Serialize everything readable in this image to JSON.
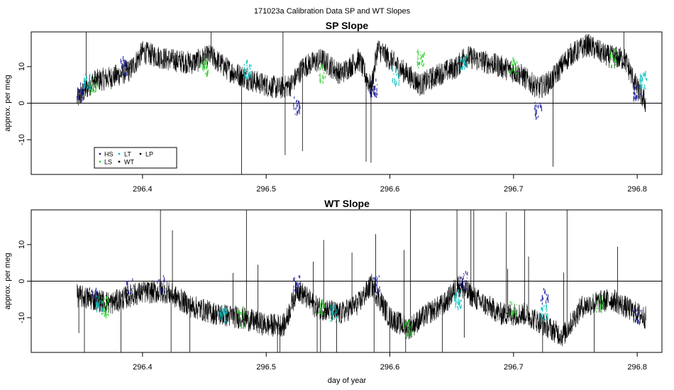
{
  "figure": {
    "suptitle": "171023a   Calibration Data SP and WT Slopes",
    "xlabel": "day of year"
  },
  "legend": {
    "entries": [
      {
        "label": "HS",
        "color": "#1a1a9c"
      },
      {
        "label": "LT",
        "color": "#00c0c0"
      },
      {
        "label": "LP",
        "color": "#000000"
      },
      {
        "label": "LS",
        "color": "#22cc22"
      },
      {
        "label": "WT",
        "color": "#000000"
      }
    ]
  },
  "chart_data": [
    {
      "type": "line",
      "title": "SP Slope",
      "xlabel": "",
      "ylabel": "approx. per meg",
      "xlim": [
        296.31,
        296.82
      ],
      "ylim": [
        -19.5,
        19.5
      ],
      "xticks": [
        296.4,
        296.5,
        296.6,
        296.7,
        296.8
      ],
      "xtick_labels": [
        "296.4",
        "296.5",
        "296.6",
        "296.7",
        "296.8"
      ],
      "yticks": [
        -10,
        0,
        10
      ],
      "ytick_labels": [
        "-10",
        "0",
        "10"
      ],
      "hline": 0,
      "legend_position": "bottom-left",
      "series": [
        {
          "name": "WT",
          "color": "#000000",
          "x": [
            296.347,
            296.36,
            296.375,
            296.39,
            296.4,
            296.42,
            296.44,
            296.455,
            296.47,
            296.49,
            296.5,
            296.51,
            296.52,
            296.53,
            296.545,
            296.56,
            296.575,
            296.585,
            296.59,
            296.61,
            296.625,
            296.64,
            296.655,
            296.66,
            296.67,
            296.69,
            296.705,
            296.72,
            296.73,
            296.745,
            296.76,
            296.775,
            296.79,
            296.8,
            296.807
          ],
          "y": [
            1,
            6,
            7,
            9,
            14,
            12,
            11,
            13,
            9,
            6,
            5,
            4,
            5,
            10,
            12,
            8,
            12,
            4,
            15,
            9,
            5,
            8,
            10,
            13,
            12,
            10,
            8,
            4,
            6,
            13,
            16,
            13,
            12,
            4,
            0
          ]
        },
        {
          "name": "HS",
          "color": "#1a1a9c",
          "x": [
            296.35,
            296.385,
            296.525,
            296.587,
            296.72,
            296.8
          ],
          "y": [
            3,
            10,
            -1,
            4,
            -2,
            3
          ]
        },
        {
          "name": "LS",
          "color": "#22cc22",
          "x": [
            296.36,
            296.45,
            296.545,
            296.625,
            296.7,
            296.78
          ],
          "y": [
            5,
            10,
            8,
            12,
            10,
            12
          ]
        },
        {
          "name": "LT",
          "color": "#00c0c0",
          "x": [
            296.355,
            296.485,
            296.605,
            296.66,
            296.805
          ],
          "y": [
            6,
            9,
            7,
            11,
            6
          ]
        }
      ]
    },
    {
      "type": "line",
      "title": "WT Slope",
      "xlabel": "day of year",
      "ylabel": "approx. per meg",
      "xlim": [
        296.31,
        296.82
      ],
      "ylim": [
        -19.5,
        19.5
      ],
      "xticks": [
        296.4,
        296.5,
        296.6,
        296.7,
        296.8
      ],
      "xtick_labels": [
        "296.4",
        "296.5",
        "296.6",
        "296.7",
        "296.8"
      ],
      "yticks": [
        -10,
        0,
        10
      ],
      "ytick_labels": [
        "-10",
        "0",
        "10"
      ],
      "hline": 0,
      "series": [
        {
          "name": "WT",
          "color": "#000000",
          "x": [
            296.347,
            296.36,
            296.375,
            296.39,
            296.4,
            296.42,
            296.44,
            296.46,
            296.48,
            296.5,
            296.515,
            296.525,
            296.54,
            296.56,
            296.575,
            296.585,
            296.6,
            296.615,
            296.63,
            296.645,
            296.655,
            296.67,
            296.69,
            296.71,
            296.725,
            296.74,
            296.755,
            296.765,
            296.78,
            296.795,
            296.807
          ],
          "y": [
            -4,
            -5,
            -6,
            -4,
            -3,
            -3,
            -7,
            -9,
            -10,
            -12,
            -12,
            -2,
            -7,
            -9,
            -6,
            -1,
            -10,
            -13,
            -9,
            -6,
            -1,
            -5,
            -9,
            -9,
            -12,
            -15,
            -7,
            -6,
            -5,
            -8,
            -10
          ]
        },
        {
          "name": "HS",
          "color": "#1a1a9c",
          "x": [
            296.36,
            296.39,
            296.415,
            296.525,
            296.59,
            296.66,
            296.725,
            296.8
          ],
          "y": [
            -4,
            -2,
            -1,
            -1,
            -1,
            0,
            -4,
            -10
          ]
        },
        {
          "name": "LS",
          "color": "#22cc22",
          "x": [
            296.37,
            296.48,
            296.545,
            296.615,
            296.7,
            296.77
          ],
          "y": [
            -7,
            -10,
            -7,
            -13,
            -8,
            -6
          ]
        },
        {
          "name": "LT",
          "color": "#00c0c0",
          "x": [
            296.365,
            296.465,
            296.555,
            296.655,
            296.725
          ],
          "y": [
            -6,
            -9,
            -9,
            -5,
            -9
          ]
        }
      ]
    }
  ]
}
